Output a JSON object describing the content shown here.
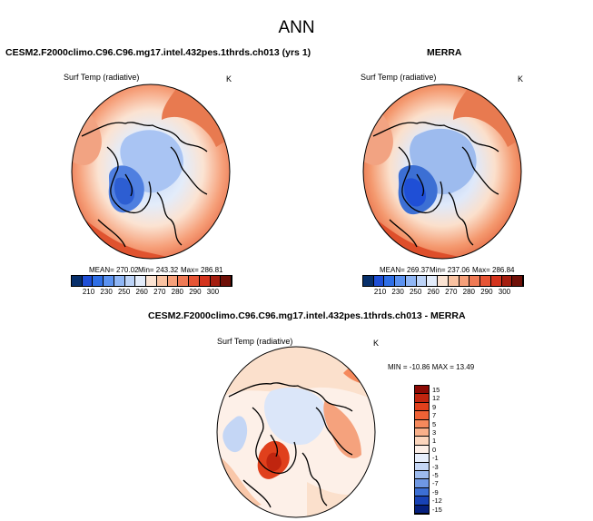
{
  "figure": {
    "title": "ANN"
  },
  "panel_test": {
    "case_title": "CESM2.F2000climo.C96.C96.mg17.intel.432pes.1thrds.ch013 (yrs 1)",
    "variable": "Surf Temp (radiative)",
    "units": "K",
    "mean_label": "MEAN= 270.02",
    "min_label": "Min= 243.32",
    "max_label": "Max= 286.81"
  },
  "panel_obs": {
    "case_title": "MERRA",
    "variable": "Surf Temp (radiative)",
    "units": "K",
    "mean_label": "MEAN= 269.37",
    "min_label": "Min= 237.06",
    "max_label": "Max= 286.84"
  },
  "panel_diff": {
    "case_title": "CESM2.F2000climo.C96.C96.mg17.intel.432pes.1thrds.ch013 - MERRA",
    "variable": "Surf Temp (radiative)",
    "units": "K",
    "minmax_label": "MIN = -10.86 MAX =  13.49"
  },
  "colorbar_abs": {
    "labels": [
      "210",
      "230",
      "250",
      "260",
      "270",
      "280",
      "290",
      "300"
    ],
    "colors": [
      "#08306b",
      "#1f4fd6",
      "#2f6fe6",
      "#5b92f0",
      "#8fb6f5",
      "#bcd3f7",
      "#e3ecfa",
      "#fbe3d2",
      "#f9c2a1",
      "#f6a07a",
      "#ef7a55",
      "#e65535",
      "#d4341e",
      "#a41e10",
      "#6f1008"
    ]
  },
  "colorbar_diff": {
    "labels": [
      "15",
      "12",
      "9",
      "7",
      "5",
      "3",
      "1",
      "0",
      "-1",
      "-3",
      "-5",
      "-7",
      "-9",
      "-12",
      "-15"
    ],
    "colors": [
      "#8c0a04",
      "#c0250f",
      "#e0401c",
      "#ef6236",
      "#f5895c",
      "#f9b08a",
      "#fcd6bd",
      "#fdf0e8",
      "#e6eefb",
      "#c4d6f5",
      "#9dbbee",
      "#6f98e3",
      "#3c6fd4",
      "#1842b5",
      "#06207e"
    ]
  }
}
